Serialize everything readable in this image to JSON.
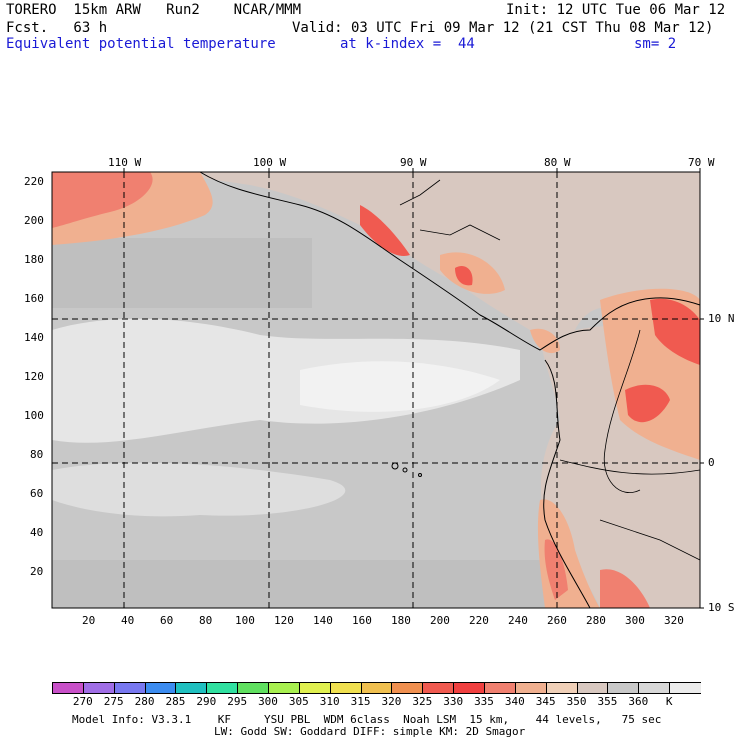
{
  "header": {
    "model": "TORERO  15km ARW   Run2    NCAR/MMM",
    "init": "Init: 12 UTC Tue 06 Mar 12",
    "fcst": "Fcst.   63 h",
    "valid": "Valid: 03 UTC Fri 09 Mar 12 (21 CST Thu 08 Mar 12)",
    "field": "Equivalent potential temperature",
    "level": "at k-index =  44",
    "smooth": "sm= 2"
  },
  "map": {
    "lon_labels": [
      "110 W",
      "100 W",
      "90 W",
      "80 W",
      "70 W"
    ],
    "lat_labels": [
      "10 N",
      "0",
      "10 S"
    ],
    "y_ticks": [
      "220",
      "200",
      "180",
      "160",
      "140",
      "120",
      "100",
      "80",
      "60",
      "40",
      "20"
    ],
    "x_ticks": [
      "20",
      "40",
      "60",
      "80",
      "100",
      "120",
      "140",
      "160",
      "180",
      "200",
      "220",
      "240",
      "260",
      "280",
      "300",
      "320"
    ]
  },
  "colorbar": {
    "colors": [
      "#c850c8",
      "#a06ee6",
      "#7878f0",
      "#3c8cf0",
      "#20c0c0",
      "#30e0a0",
      "#60e060",
      "#a8f050",
      "#e0f050",
      "#f0e050",
      "#f0c050",
      "#f09050",
      "#f05a50",
      "#f04040",
      "#f08070",
      "#f0b090",
      "#f0d0b8",
      "#d8c8c0",
      "#c8c8c8",
      "#d8d8d8",
      "#ececec"
    ],
    "labels": [
      "270",
      "275",
      "280",
      "285",
      "290",
      "295",
      "300",
      "305",
      "310",
      "315",
      "320",
      "325",
      "330",
      "335",
      "340",
      "345",
      "350",
      "355",
      "360",
      "K"
    ]
  },
  "footer": {
    "line1": "Model Info: V3.3.1    KF     YSU PBL  WDM 6class  Noah LSM  15 km,    44 levels,   75 sec",
    "line2": "LW: Godd SW: Goddard DIFF: simple KM: 2D Smagor"
  }
}
